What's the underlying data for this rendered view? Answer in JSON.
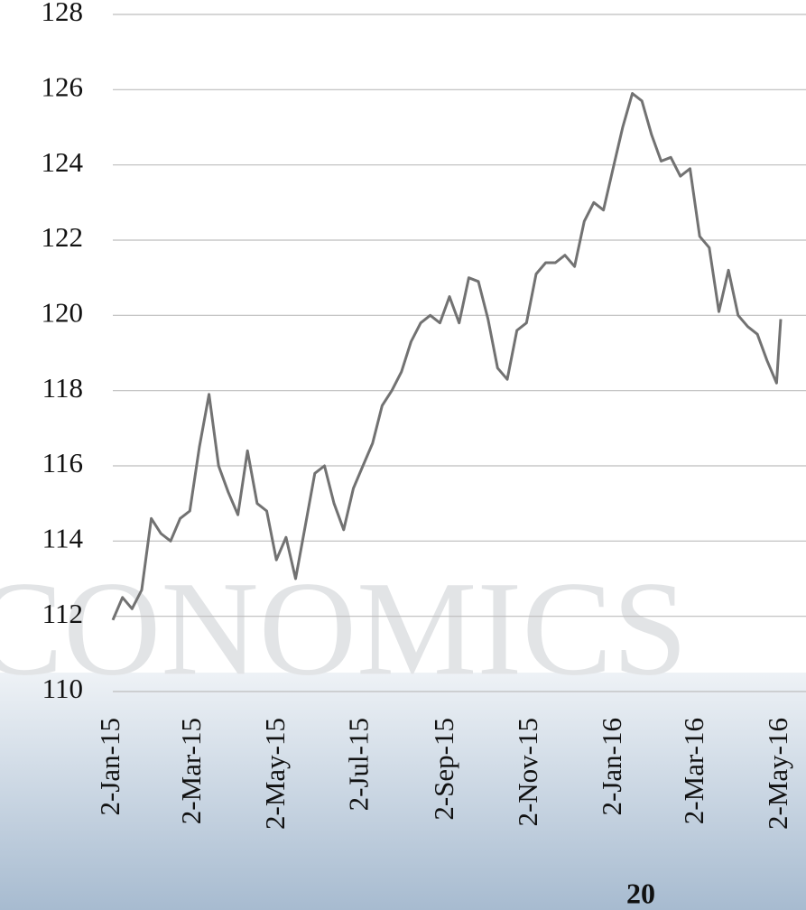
{
  "chart_data": {
    "type": "line",
    "x": [
      "2015-01-02",
      "2015-01-09",
      "2015-01-16",
      "2015-01-23",
      "2015-01-30",
      "2015-02-06",
      "2015-02-13",
      "2015-02-20",
      "2015-02-27",
      "2015-03-06",
      "2015-03-13",
      "2015-03-20",
      "2015-03-27",
      "2015-04-03",
      "2015-04-10",
      "2015-04-17",
      "2015-04-24",
      "2015-05-01",
      "2015-05-08",
      "2015-05-15",
      "2015-05-22",
      "2015-05-29",
      "2015-06-05",
      "2015-06-12",
      "2015-06-19",
      "2015-06-26",
      "2015-07-03",
      "2015-07-10",
      "2015-07-17",
      "2015-07-24",
      "2015-07-31",
      "2015-08-07",
      "2015-08-14",
      "2015-08-21",
      "2015-08-28",
      "2015-09-04",
      "2015-09-11",
      "2015-09-18",
      "2015-09-25",
      "2015-10-02",
      "2015-10-09",
      "2015-10-16",
      "2015-10-23",
      "2015-10-30",
      "2015-11-06",
      "2015-11-13",
      "2015-11-20",
      "2015-11-27",
      "2015-12-04",
      "2015-12-11",
      "2015-12-18",
      "2015-12-25",
      "2016-01-01",
      "2016-01-08",
      "2016-01-15",
      "2016-01-22",
      "2016-01-29",
      "2016-02-05",
      "2016-02-12",
      "2016-02-19",
      "2016-02-26",
      "2016-03-04",
      "2016-03-11",
      "2016-03-18",
      "2016-03-25",
      "2016-04-01",
      "2016-04-08",
      "2016-04-15",
      "2016-04-22",
      "2016-04-29",
      "2016-05-02"
    ],
    "series": [
      {
        "color": "#727272",
        "values": [
          111.9,
          112.5,
          112.2,
          112.7,
          114.6,
          114.2,
          114.0,
          114.6,
          114.8,
          116.5,
          117.9,
          116.0,
          115.3,
          114.7,
          116.4,
          115.0,
          114.8,
          113.5,
          114.1,
          113.0,
          114.4,
          115.8,
          116.0,
          115.0,
          114.3,
          115.4,
          116.0,
          116.6,
          117.6,
          118.0,
          118.5,
          119.3,
          119.8,
          120.0,
          119.8,
          120.5,
          119.8,
          121.0,
          120.9,
          119.9,
          118.6,
          118.3,
          119.6,
          119.8,
          121.1,
          121.4,
          121.4,
          121.6,
          121.3,
          122.5,
          123.0,
          122.8,
          123.9,
          125.0,
          125.9,
          125.7,
          124.8,
          124.1,
          124.2,
          123.7,
          123.9,
          122.1,
          121.8,
          120.1,
          121.2,
          120.0,
          119.7,
          119.5,
          118.8,
          118.2,
          119.9
        ]
      }
    ],
    "xlim": [
      "2015-01-02",
      "2016-05-02"
    ],
    "xticks": [
      {
        "value": "2015-01-02",
        "label": "2-Jan-15"
      },
      {
        "value": "2015-03-02",
        "label": "2-Mar-15"
      },
      {
        "value": "2015-05-02",
        "label": "2-May-15"
      },
      {
        "value": "2015-07-02",
        "label": "2-Jul-15"
      },
      {
        "value": "2015-09-02",
        "label": "2-Sep-15"
      },
      {
        "value": "2015-11-02",
        "label": "2-Nov-15"
      },
      {
        "value": "2016-01-02",
        "label": "2-Jan-16"
      },
      {
        "value": "2016-03-02",
        "label": "2-Mar-16"
      },
      {
        "value": "2016-05-02",
        "label": "2-May-16"
      }
    ],
    "ylim": [
      110,
      128
    ],
    "yticks": [
      110,
      112,
      114,
      116,
      118,
      120,
      122,
      124,
      126,
      128
    ],
    "grid": true
  },
  "watermark": "CONOMICS",
  "page_number": "20"
}
